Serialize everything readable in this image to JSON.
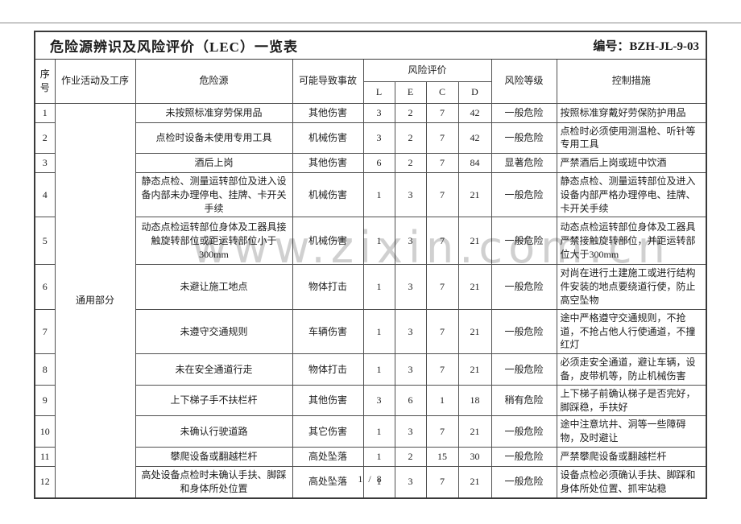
{
  "page": {
    "footer_page_indicator": "1 / 8",
    "watermark_text": "www.zixin.com.cn"
  },
  "header": {
    "title": "危险源辨识及风险评价（LEC）一览表",
    "doc_number": "编号：BZH-JL-9-03"
  },
  "table": {
    "columns": {
      "no": "序号",
      "activity": "作业活动及工序",
      "hazard": "危险源",
      "accident": "可能导致事故",
      "risk_eval": "风险评价",
      "L": "L",
      "E": "E",
      "C": "C",
      "D": "D",
      "level": "风险等级",
      "control": "控制措施"
    },
    "activity_group": "通用部分",
    "rows": [
      {
        "no": "1",
        "hazard": "未按照标准穿劳保用品",
        "accident": "其他伤害",
        "L": "3",
        "E": "2",
        "C": "7",
        "D": "42",
        "level": "一般危险",
        "control": "按照标准穿戴好劳保防护用品"
      },
      {
        "no": "2",
        "hazard": "点检时设备未使用专用工具",
        "accident": "机械伤害",
        "L": "3",
        "E": "2",
        "C": "7",
        "D": "42",
        "level": "一般危险",
        "control": "点检时必须使用测温枪、听针等专用工具"
      },
      {
        "no": "3",
        "hazard": "酒后上岗",
        "accident": "其他伤害",
        "L": "6",
        "E": "2",
        "C": "7",
        "D": "84",
        "level": "显著危险",
        "control": "严禁酒后上岗或班中饮酒"
      },
      {
        "no": "4",
        "hazard": "静态点检、测量运转部位及进入设备内部未办理停电、挂牌、卡开关手续",
        "accident": "机械伤害",
        "L": "1",
        "E": "3",
        "C": "7",
        "D": "21",
        "level": "一般危险",
        "control": "静态点检、测量运转部位及进入设备内部严格办理停电、挂牌、卡开关手续"
      },
      {
        "no": "5",
        "hazard": "动态点检运转部位身体及工器具接触旋转部位或距运转部位小于300mm",
        "accident": "机械伤害",
        "L": "1",
        "E": "3",
        "C": "7",
        "D": "21",
        "level": "一般危险",
        "control": "动态点检运转部位身体及工器具严禁接触旋转部位，并距运转部位大于300mm"
      },
      {
        "no": "6",
        "hazard": "未避让施工地点",
        "accident": "物体打击",
        "L": "1",
        "E": "3",
        "C": "7",
        "D": "21",
        "level": "一般危险",
        "control": "对尚在进行土建施工或进行结构件安装的地点要绕道行使，防止高空坠物"
      },
      {
        "no": "7",
        "hazard": "未遵守交通规则",
        "accident": "车辆伤害",
        "L": "1",
        "E": "3",
        "C": "7",
        "D": "21",
        "level": "一般危险",
        "control": "途中严格遵守交通规则，不抢道，不抢占他人行使通道，不撞红灯"
      },
      {
        "no": "8",
        "hazard": "未在安全通道行走",
        "accident": "物体打击",
        "L": "1",
        "E": "3",
        "C": "7",
        "D": "21",
        "level": "一般危险",
        "control": "必须走安全通道，避让车辆，设备，皮带机等，防止机械伤害"
      },
      {
        "no": "9",
        "hazard": "上下梯子手不扶栏杆",
        "accident": "其他伤害",
        "L": "3",
        "E": "6",
        "C": "1",
        "D": "18",
        "level": "稍有危险",
        "control": "上下梯子前确认梯子是否完好，脚踩稳，手扶好"
      },
      {
        "no": "10",
        "hazard": "未确认行驶道路",
        "accident": "其它伤害",
        "L": "1",
        "E": "3",
        "C": "7",
        "D": "21",
        "level": "一般危险",
        "control": "途中注意坑井、洞等一些障碍物，及时避让"
      },
      {
        "no": "11",
        "hazard": "攀爬设备或翻越栏杆",
        "accident": "高处坠落",
        "L": "1",
        "E": "2",
        "C": "15",
        "D": "30",
        "level": "一般危险",
        "control": "严禁攀爬设备或翻越栏杆"
      },
      {
        "no": "12",
        "hazard": "高处设备点检时未确认手扶、脚踩和身体所处位置",
        "accident": "高处坠落",
        "L": "1",
        "E": "3",
        "C": "7",
        "D": "21",
        "level": "一般危险",
        "control": "设备点检必须确认手扶、脚踩和身体所处位置、抓牢站稳"
      }
    ]
  }
}
